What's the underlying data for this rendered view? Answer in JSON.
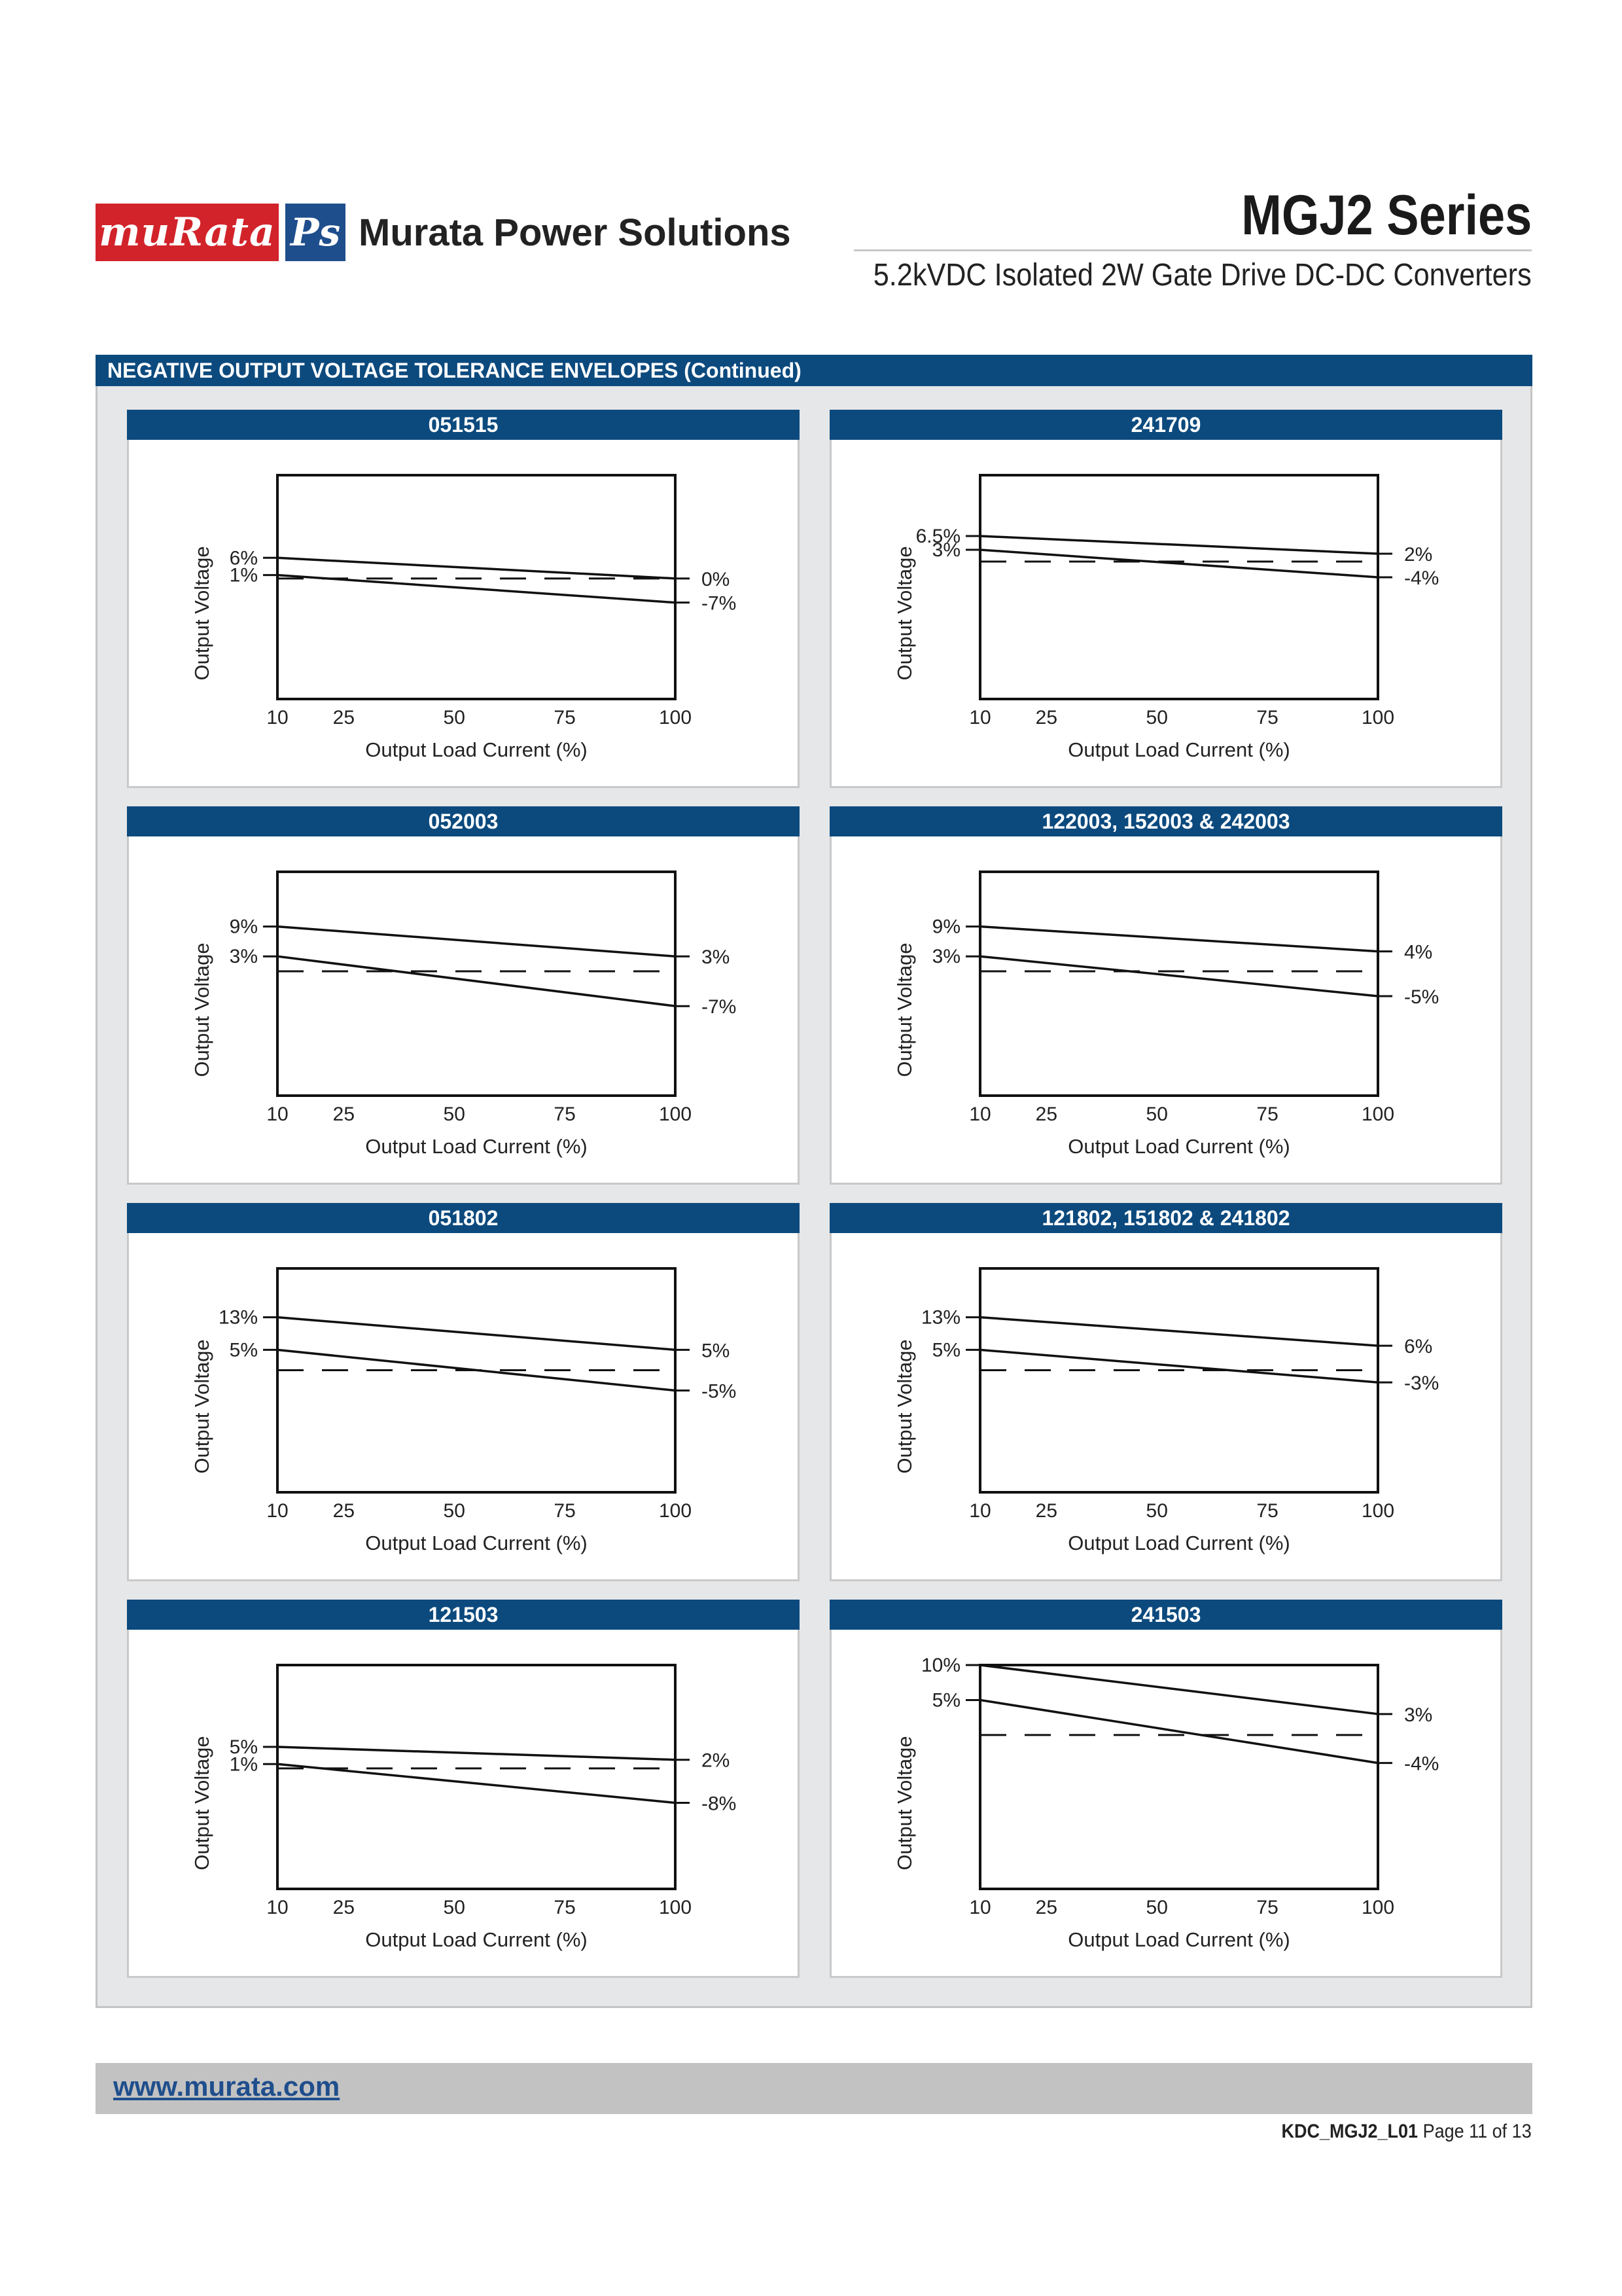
{
  "header": {
    "logo_text": "muRata",
    "logo_ps": "Ps",
    "company": "Murata Power Solutions",
    "series": "MGJ2 Series",
    "subtitle": "5.2kVDC Isolated 2W Gate Drive DC-DC Converters"
  },
  "section": {
    "title": "NEGATIVE OUTPUT VOLTAGE TOLERANCE ENVELOPES (Continued)"
  },
  "footer": {
    "url": "www.murata.com",
    "doc_code": "KDC_MGJ2_L01",
    "page": "Page 11 of 13"
  },
  "colors": {
    "brand_red": "#d2232a",
    "brand_blue": "#1f4e8c",
    "panel_blue": "#0c4a7e",
    "panel_bg": "#e6e7e8"
  },
  "chart_data": [
    {
      "type": "line",
      "title": "051515",
      "xlabel": "Output Load Current (%)",
      "ylabel": "Output Voltage",
      "x_ticks": [
        10,
        25,
        50,
        75,
        100
      ],
      "xlim": [
        10,
        100
      ],
      "ylim": [
        -35,
        30
      ],
      "series": [
        {
          "name": "upper",
          "start": 6,
          "end": 0,
          "start_label": "6%",
          "end_label": "0%"
        },
        {
          "name": "lower",
          "start": 1,
          "end": -7,
          "start_label": "1%",
          "end_label": "-7%"
        }
      ],
      "nominal": 0
    },
    {
      "type": "line",
      "title": "241709",
      "xlabel": "Output Load Current (%)",
      "ylabel": "Output Voltage",
      "x_ticks": [
        10,
        25,
        50,
        75,
        100
      ],
      "xlim": [
        10,
        100
      ],
      "ylim": [
        -35,
        22
      ],
      "series": [
        {
          "name": "upper",
          "start": 6.5,
          "end": 2,
          "start_label": "6.5%",
          "end_label": "2%"
        },
        {
          "name": "lower",
          "start": 3,
          "end": -4,
          "start_label": "3%",
          "end_label": "-4%"
        }
      ],
      "nominal": 0
    },
    {
      "type": "line",
      "title": "052003",
      "xlabel": "Output Load Current (%)",
      "ylabel": "Output Voltage",
      "x_ticks": [
        10,
        25,
        50,
        75,
        100
      ],
      "xlim": [
        10,
        100
      ],
      "ylim": [
        -25,
        20
      ],
      "series": [
        {
          "name": "upper",
          "start": 9,
          "end": 3,
          "start_label": "9%",
          "end_label": "3%"
        },
        {
          "name": "lower",
          "start": 3,
          "end": -7,
          "start_label": "3%",
          "end_label": "-7%"
        }
      ],
      "nominal": 0
    },
    {
      "type": "line",
      "title": "122003, 152003 & 242003",
      "xlabel": "Output Load Current (%)",
      "ylabel": "Output Voltage",
      "x_ticks": [
        10,
        25,
        50,
        75,
        100
      ],
      "xlim": [
        10,
        100
      ],
      "ylim": [
        -25,
        20
      ],
      "series": [
        {
          "name": "upper",
          "start": 9,
          "end": 4,
          "start_label": "9%",
          "end_label": "4%"
        },
        {
          "name": "lower",
          "start": 3,
          "end": -5,
          "start_label": "3%",
          "end_label": "-5%"
        }
      ],
      "nominal": 0
    },
    {
      "type": "line",
      "title": "051802",
      "xlabel": "Output Load Current (%)",
      "ylabel": "Output Voltage",
      "x_ticks": [
        10,
        25,
        50,
        75,
        100
      ],
      "xlim": [
        10,
        100
      ],
      "ylim": [
        -30,
        25
      ],
      "series": [
        {
          "name": "upper",
          "start": 13,
          "end": 5,
          "start_label": "13%",
          "end_label": "5%"
        },
        {
          "name": "lower",
          "start": 5,
          "end": -5,
          "start_label": "5%",
          "end_label": "-5%"
        }
      ],
      "nominal": 0
    },
    {
      "type": "line",
      "title": "121802, 151802 & 241802",
      "xlabel": "Output Load Current (%)",
      "ylabel": "Output Voltage",
      "x_ticks": [
        10,
        25,
        50,
        75,
        100
      ],
      "xlim": [
        10,
        100
      ],
      "ylim": [
        -30,
        25
      ],
      "series": [
        {
          "name": "upper",
          "start": 13,
          "end": 6,
          "start_label": "13%",
          "end_label": "6%"
        },
        {
          "name": "lower",
          "start": 5,
          "end": -3,
          "start_label": "5%",
          "end_label": "-3%"
        }
      ],
      "nominal": 0
    },
    {
      "type": "line",
      "title": "121503",
      "xlabel": "Output Load Current (%)",
      "ylabel": "Output Voltage",
      "x_ticks": [
        10,
        25,
        50,
        75,
        100
      ],
      "xlim": [
        10,
        100
      ],
      "ylim": [
        -28,
        24
      ],
      "series": [
        {
          "name": "upper",
          "start": 5,
          "end": 2,
          "start_label": "5%",
          "end_label": "2%"
        },
        {
          "name": "lower",
          "start": 1,
          "end": -8,
          "start_label": "1%",
          "end_label": "-8%"
        }
      ],
      "nominal": 0
    },
    {
      "type": "line",
      "title": "241503",
      "xlabel": "Output Load Current (%)",
      "ylabel": "Output Voltage",
      "x_ticks": [
        10,
        25,
        50,
        75,
        100
      ],
      "xlim": [
        10,
        100
      ],
      "ylim": [
        -22,
        10
      ],
      "series": [
        {
          "name": "upper",
          "start": 10,
          "end": 3,
          "start_label": "10%",
          "end_label": "3%"
        },
        {
          "name": "lower",
          "start": 5,
          "end": -4,
          "start_label": "5%",
          "end_label": "-4%"
        }
      ],
      "nominal": 0
    }
  ]
}
